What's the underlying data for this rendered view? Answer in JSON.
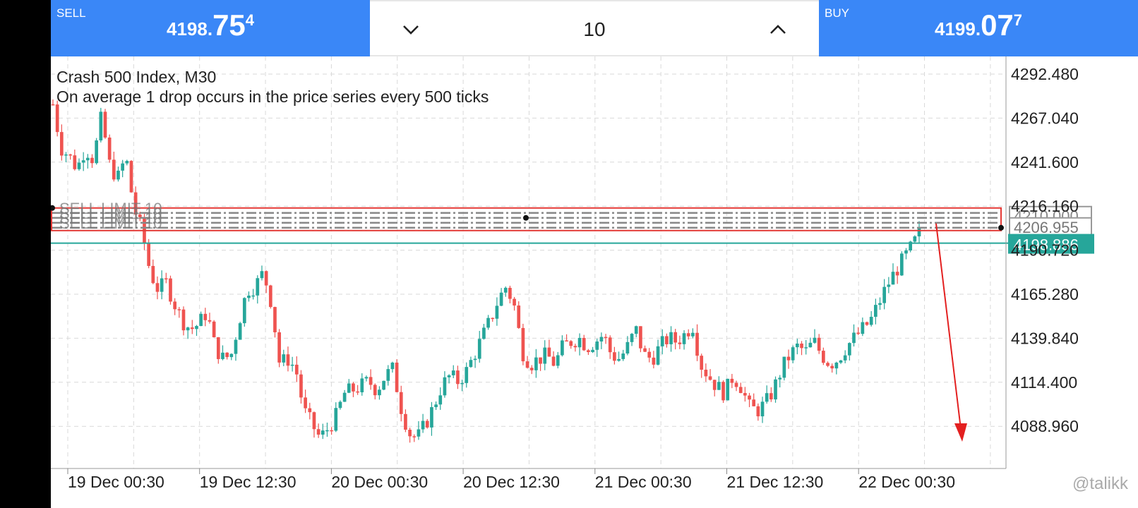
{
  "trade_bar": {
    "sell": {
      "label": "SELL",
      "price_main": "4198.",
      "price_big": "75",
      "price_sup": "4"
    },
    "volume": {
      "value": "10",
      "down_icon": "chevron-down",
      "up_icon": "chevron-up"
    },
    "buy": {
      "label": "BUY",
      "price_main": "4199.",
      "price_big": "07",
      "price_sup": "7"
    }
  },
  "chart": {
    "title": "Crash 500 Index, M30",
    "description": "On average 1 drop occurs in the price series every 500 ticks",
    "watermark": "@talikk",
    "colors": {
      "bull": "#26a69a",
      "bear": "#ef5350",
      "grid": "#d9d9d9",
      "order_line": "#e53935",
      "bid_line": "#26a69a"
    },
    "orders": [
      {
        "label": "SELL LIMIT 10"
      },
      {
        "label": "SELL LIMIT 10"
      },
      {
        "label": "SELL LIMIT 10"
      },
      {
        "label": "SELL LIMIT 10"
      }
    ],
    "price_tags": {
      "order_price_top": "4210.000",
      "order_price": "4206.955",
      "bid": "4198.886"
    }
  },
  "chart_data": {
    "type": "candlestick",
    "symbol": "Crash 500 Index",
    "timeframe": "M30",
    "y_ticks": [
      4292.48,
      4267.04,
      4241.6,
      4216.16,
      4190.72,
      4165.28,
      4139.84,
      4114.4,
      4088.96
    ],
    "y_tick_labels": [
      "4292.480",
      "4267.040",
      "4241.600",
      "4216.160",
      "4190.720",
      "4165.280",
      "4139.840",
      "4114.400",
      "4088.960"
    ],
    "x_tick_labels": [
      "19 Dec 00:30",
      "19 Dec 12:30",
      "20 Dec 00:30",
      "20 Dec 12:30",
      "21 Dec 00:30",
      "21 Dec 12:30",
      "22 Dec 00:30"
    ],
    "ylim": [
      4070,
      4300
    ],
    "close_path": [
      4275,
      4250,
      4245,
      4238,
      4250,
      4243,
      4268,
      4240,
      4232,
      4245,
      4215,
      4202,
      4178,
      4168,
      4172,
      4160,
      4150,
      4145,
      4148,
      4155,
      4135,
      4128,
      4130,
      4150,
      4168,
      4170,
      4178,
      4160,
      4125,
      4128,
      4122,
      4098,
      4090,
      4082,
      4088,
      4095,
      4108,
      4110,
      4112,
      4115,
      4110,
      4118,
      4122,
      4100,
      4085,
      4082,
      4090,
      4100,
      4112,
      4118,
      4115,
      4120,
      4130,
      4140,
      4150,
      4162,
      4170,
      4158,
      4132,
      4125,
      4128,
      4130,
      4125,
      4135,
      4138,
      4140,
      4135,
      4138,
      4142,
      4130,
      4128,
      4135,
      4145,
      4130,
      4128,
      4135,
      4140,
      4138,
      4142,
      4148,
      4125,
      4118,
      4112,
      4108,
      4118,
      4112,
      4100,
      4098,
      4102,
      4110,
      4122,
      4130,
      4135,
      4132,
      4138,
      4130,
      4125,
      4128,
      4135,
      4140,
      4145,
      4150,
      4160,
      4170,
      4178,
      4185,
      4192,
      4200
    ],
    "bid": 4198.886,
    "order_price": 4206.955
  }
}
